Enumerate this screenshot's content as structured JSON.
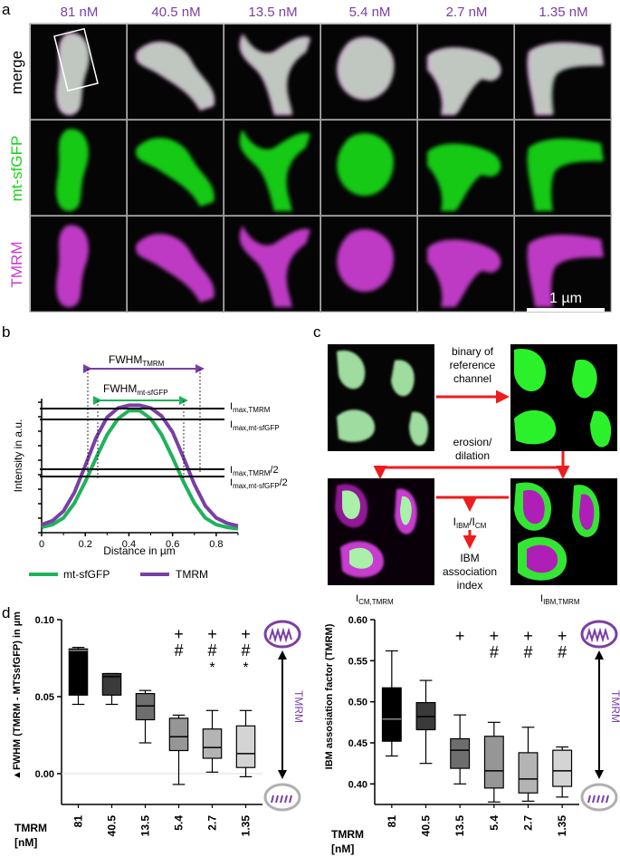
{
  "panels": {
    "a": "a",
    "b": "b",
    "c": "c",
    "d": "d"
  },
  "panel_a": {
    "concentrations": [
      "81 nM",
      "40.5 nM",
      "13.5 nM",
      "5.4 nM",
      "2.7 nM",
      "1.35 nM"
    ],
    "rows": [
      "merge",
      "mt-sfGFP",
      "TMRM"
    ],
    "scale_bar": "1 µm",
    "colors": {
      "green": "#19d419",
      "magenta": "#c83ccf",
      "label": "#7a3fa6"
    }
  },
  "panel_b": {
    "fwhm_tmrm": "FWHM",
    "fwhm_tmrm_sub": "TMRM",
    "fwhm_gfp": "FWHM",
    "fwhm_gfp_sub": "mt-sfGFP",
    "imax_tmrm": "I",
    "imax_tmrm_sub": "max,TMRM",
    "imax_gfp": "I",
    "imax_gfp_sub": "max,mt-sfGFP",
    "half_tmrm": "I",
    "half_tmrm_sub": "max,TMRM",
    "half_tmrm_tail": "/2",
    "half_gfp": "I",
    "half_gfp_sub": "max,mt-sfGFP",
    "half_gfp_tail": "/2",
    "ylabel": "Intensity in a.u.",
    "xlabel": "Distance in µm",
    "xticks": [
      "0",
      "0.2",
      "0.4",
      "0.6",
      "0.8"
    ],
    "legend": [
      "mt-sfGFP",
      "TMRM"
    ],
    "colors": {
      "gfp": "#1db35a",
      "tmrm": "#7a3fa6"
    }
  },
  "panel_c": {
    "step1": [
      "binary of",
      "reference",
      "channel"
    ],
    "step2": [
      "erosion/",
      "dilation"
    ],
    "ratio_main1": "I",
    "ratio_sub1": "IBM",
    "ratio_mid": "/I",
    "ratio_sub2": "CM",
    "result": [
      "IBM",
      "association",
      "index"
    ],
    "label_left": "I",
    "label_left_sub": "CM,TMRM",
    "label_right": "I",
    "label_right_sub": "IBM,TMRM"
  },
  "panel_d": {
    "xaxis_title": [
      "TMRM",
      "[nM]"
    ],
    "arrow_label": "TMRM",
    "left": {
      "ylabel_symbol": "▲",
      "ylabel": "FWHM (TMRM - MTSsfGFP) in µm",
      "yticks": [
        "0.00",
        "0.05",
        "0.10"
      ],
      "markers": [
        [],
        [],
        [],
        [
          "+",
          "#"
        ],
        [
          "+",
          "#",
          "*"
        ],
        [
          "+",
          "#",
          "*"
        ]
      ]
    },
    "right": {
      "ylabel": "IBM assosiation factor (TMRM)",
      "yticks": [
        "0.40",
        "0.45",
        "0.50",
        "0.55",
        "0.60"
      ],
      "markers": [
        [],
        [],
        [
          "+"
        ],
        [
          "+",
          "#"
        ],
        [
          "+",
          "#"
        ],
        [
          "+",
          "#"
        ]
      ]
    }
  },
  "chart_data": [
    {
      "type": "line",
      "title": "",
      "xlabel": "Distance in µm",
      "ylabel": "Intensity in a.u.",
      "xlim": [
        0,
        0.9
      ],
      "series": [
        {
          "name": "mt-sfGFP",
          "x": [
            0,
            0.05,
            0.1,
            0.15,
            0.2,
            0.25,
            0.3,
            0.35,
            0.4,
            0.45,
            0.5,
            0.55,
            0.6,
            0.65,
            0.7,
            0.75,
            0.8,
            0.85,
            0.9
          ],
          "y": [
            0.04,
            0.06,
            0.11,
            0.22,
            0.38,
            0.56,
            0.73,
            0.85,
            0.91,
            0.91,
            0.85,
            0.73,
            0.56,
            0.38,
            0.22,
            0.11,
            0.06,
            0.04,
            0.03
          ]
        },
        {
          "name": "TMRM",
          "x": [
            0,
            0.05,
            0.1,
            0.15,
            0.2,
            0.25,
            0.3,
            0.35,
            0.4,
            0.45,
            0.5,
            0.55,
            0.6,
            0.65,
            0.7,
            0.75,
            0.8,
            0.85,
            0.9
          ],
          "y": [
            0.06,
            0.09,
            0.16,
            0.3,
            0.5,
            0.71,
            0.86,
            0.93,
            0.95,
            0.95,
            0.93,
            0.87,
            0.75,
            0.56,
            0.36,
            0.2,
            0.11,
            0.07,
            0.05
          ]
        }
      ],
      "grid": false
    },
    {
      "type": "box",
      "title": "",
      "xlabel": "TMRM [nM]",
      "ylabel": "FWHM (TMRM - MTSsfGFP) in µm",
      "ylim": [
        -0.02,
        0.1
      ],
      "categories": [
        "81",
        "40.5",
        "13.5",
        "5.4",
        "2.7",
        "1.35"
      ],
      "boxes": [
        {
          "min": 0.045,
          "q1": 0.051,
          "median": 0.08,
          "q3": 0.081,
          "max": 0.082
        },
        {
          "min": 0.045,
          "q1": 0.051,
          "median": 0.063,
          "q3": 0.065,
          "max": 0.065
        },
        {
          "min": 0.02,
          "q1": 0.035,
          "median": 0.044,
          "q3": 0.052,
          "max": 0.054
        },
        {
          "min": -0.007,
          "q1": 0.015,
          "median": 0.024,
          "q3": 0.036,
          "max": 0.038
        },
        {
          "min": 0.001,
          "q1": 0.01,
          "median": 0.017,
          "q3": 0.029,
          "max": 0.041
        },
        {
          "min": -0.002,
          "q1": 0.004,
          "median": 0.013,
          "q3": 0.031,
          "max": 0.041
        }
      ],
      "colors": [
        "#000000",
        "#3a3a3a",
        "#6e6e6e",
        "#969696",
        "#b4b4b4",
        "#d4d4d4"
      ],
      "grid": false
    },
    {
      "type": "box",
      "title": "",
      "xlabel": "TMRM [nM]",
      "ylabel": "IBM assosiation factor (TMRM)",
      "ylim": [
        0.375,
        0.6
      ],
      "categories": [
        "81",
        "40.5",
        "13.5",
        "5.4",
        "2.7",
        "1.35"
      ],
      "boxes": [
        {
          "min": 0.434,
          "q1": 0.452,
          "median": 0.479,
          "q3": 0.517,
          "max": 0.562
        },
        {
          "min": 0.425,
          "q1": 0.466,
          "median": 0.482,
          "q3": 0.499,
          "max": 0.526
        },
        {
          "min": 0.4,
          "q1": 0.419,
          "median": 0.441,
          "q3": 0.455,
          "max": 0.484
        },
        {
          "min": 0.378,
          "q1": 0.395,
          "median": 0.416,
          "q3": 0.458,
          "max": 0.475
        },
        {
          "min": 0.379,
          "q1": 0.389,
          "median": 0.406,
          "q3": 0.438,
          "max": 0.469
        },
        {
          "min": 0.384,
          "q1": 0.397,
          "median": 0.416,
          "q3": 0.441,
          "max": 0.445
        }
      ],
      "colors": [
        "#000000",
        "#3a3a3a",
        "#6e6e6e",
        "#969696",
        "#b4b4b4",
        "#d4d4d4"
      ],
      "grid": false
    }
  ]
}
